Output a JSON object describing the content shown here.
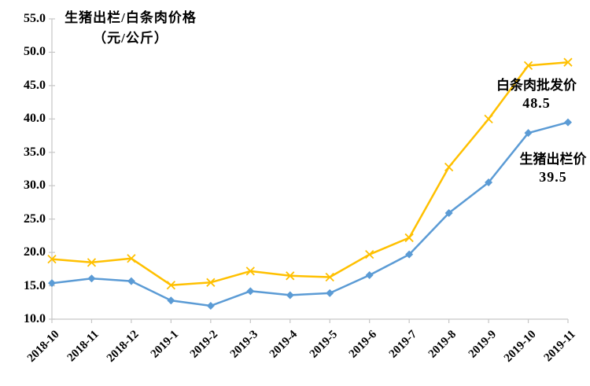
{
  "title": {
    "line1": "生猪出栏/白条肉价格",
    "line2": "（元/公斤）"
  },
  "chart_data": {
    "type": "line",
    "categories": [
      "2018-10",
      "2018-11",
      "2018-12",
      "2019-1",
      "2019-2",
      "2019-3",
      "2019-4",
      "2019-5",
      "2019-6",
      "2019-7",
      "2019-8",
      "2019-9",
      "2019-10",
      "2019-11"
    ],
    "series": [
      {
        "name": "白条肉批发价",
        "marker": "x",
        "color": "#FFC000",
        "values": [
          19.0,
          18.5,
          19.1,
          15.1,
          15.5,
          17.2,
          16.5,
          16.3,
          19.7,
          22.2,
          32.8,
          40.0,
          48.0,
          48.5
        ]
      },
      {
        "name": "生猪出栏价",
        "marker": "diamond",
        "color": "#5B9BD5",
        "values": [
          15.4,
          16.1,
          15.7,
          12.8,
          12.0,
          14.2,
          13.6,
          13.9,
          16.6,
          19.7,
          25.9,
          30.5,
          37.9,
          39.5
        ]
      }
    ],
    "ylim": [
      10,
      55
    ],
    "ytick_step": 5,
    "ytick_labels": [
      "55.0",
      "50.0",
      "45.0",
      "40.0",
      "35.0",
      "30.0",
      "25.0",
      "20.0",
      "15.0",
      "10.0"
    ],
    "grid": false,
    "legend_position": "none",
    "axis_color": "#C6C6C6",
    "text_color": "#000000",
    "annotations": [
      {
        "label": "白条肉批发价",
        "value": "48.5"
      },
      {
        "label": "生猪出栏价",
        "value": "39.5"
      }
    ]
  }
}
